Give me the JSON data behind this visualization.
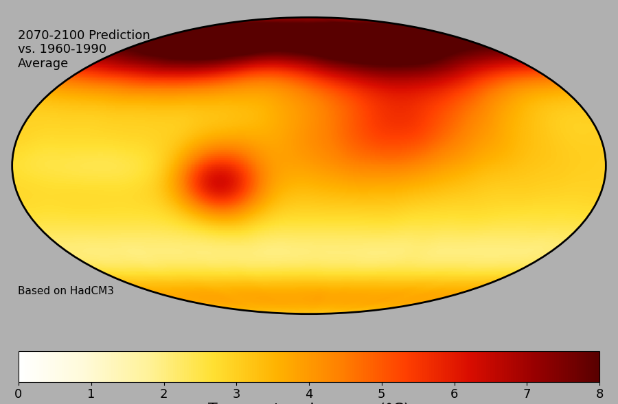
{
  "title": "2070-2100 Prediction\nvs. 1960-1990\nAverage",
  "subtitle": "Based on HadCM3",
  "colorbar_label": "Temperature Increase (°C)",
  "colorbar_ticks": [
    0,
    1,
    2,
    3,
    4,
    5,
    6,
    7,
    8
  ],
  "vmin": 0,
  "vmax": 8,
  "background_color": "#b0b0b0",
  "title_fontsize": 13,
  "cbar_fontsize": 16,
  "cbar_tick_fontsize": 13,
  "fig_width": 9.0,
  "fig_height": 5.89
}
